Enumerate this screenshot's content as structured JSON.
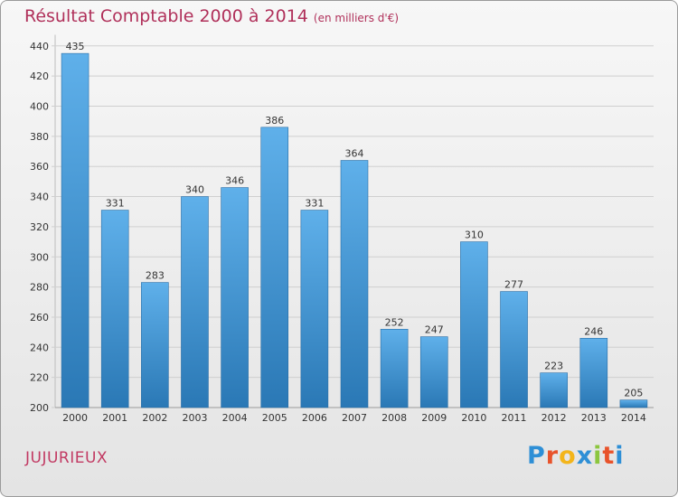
{
  "title": "Résultat Comptable 2000 à 2014",
  "unit_note": "(en milliers d'€)",
  "commune": "JUJURIEUX",
  "logo": {
    "letters": [
      "P",
      "r",
      "o",
      "x",
      "i",
      "t",
      "i"
    ],
    "colors": [
      "#2e8fd6",
      "#e8532b",
      "#f3b51b",
      "#2e8fd6",
      "#8cc63f",
      "#e8532b",
      "#2e8fd6"
    ]
  },
  "colors": {
    "bar_top": "#5fb0ea",
    "bar_bottom": "#2a78b5",
    "title": "#b0305a"
  },
  "chart_data": {
    "type": "bar",
    "title": "Résultat Comptable 2000 à 2014 (en milliers d'€)",
    "categories": [
      "2000",
      "2001",
      "2002",
      "2003",
      "2004",
      "2005",
      "2006",
      "2007",
      "2008",
      "2009",
      "2010",
      "2011",
      "2012",
      "2013",
      "2014"
    ],
    "values": [
      435,
      331,
      283,
      340,
      346,
      386,
      331,
      364,
      252,
      247,
      310,
      277,
      223,
      246,
      205
    ],
    "y_ticks": [
      200,
      220,
      240,
      260,
      280,
      300,
      320,
      340,
      360,
      380,
      400,
      420,
      440
    ],
    "ylim": [
      200,
      445
    ],
    "xlabel": "",
    "ylabel": "",
    "grid": true
  }
}
